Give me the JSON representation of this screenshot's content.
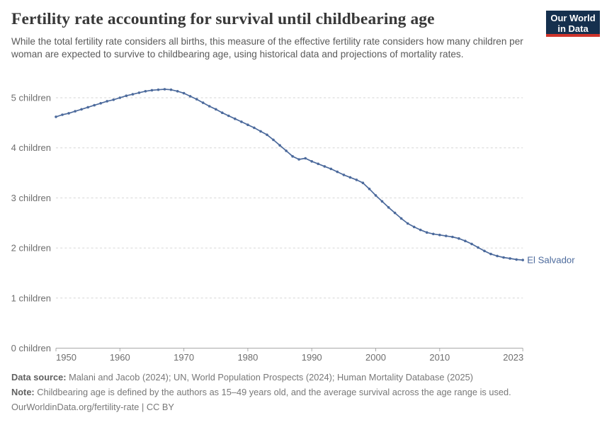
{
  "header": {
    "title": "Fertility rate accounting for survival until childbearing age",
    "subtitle": "While the total fertility rate considers all births, this measure of the effective fertility rate considers how many children per woman are expected to survive to childbearing age, using historical data and projections of mortality rates."
  },
  "logo": {
    "line1": "Our World",
    "line2": "in Data"
  },
  "chart_data": {
    "type": "line",
    "title": "Fertility rate accounting for survival until childbearing age",
    "entity": "El Salvador",
    "xlabel": "",
    "ylabel": "children",
    "xlim": [
      1950,
      2023
    ],
    "ylim": [
      0,
      5.5
    ],
    "grid": "horizontal-dashed",
    "legend_position": "end-of-line-label",
    "line_color": "#4c6a9c",
    "x_ticks": [
      1950,
      1960,
      1970,
      1980,
      1990,
      2000,
      2010,
      2023
    ],
    "y_ticks": [
      0,
      1,
      2,
      3,
      4,
      5
    ],
    "y_tick_labels": [
      "0 children",
      "1 children",
      "2 children",
      "3 children",
      "4 children",
      "5 children"
    ],
    "series": [
      {
        "name": "El Salvador",
        "years": [
          1950,
          1951,
          1952,
          1953,
          1954,
          1955,
          1956,
          1957,
          1958,
          1959,
          1960,
          1961,
          1962,
          1963,
          1964,
          1965,
          1966,
          1967,
          1968,
          1969,
          1970,
          1971,
          1972,
          1973,
          1974,
          1975,
          1976,
          1977,
          1978,
          1979,
          1980,
          1981,
          1982,
          1983,
          1984,
          1985,
          1986,
          1987,
          1988,
          1989,
          1990,
          1991,
          1992,
          1993,
          1994,
          1995,
          1996,
          1997,
          1998,
          1999,
          2000,
          2001,
          2002,
          2003,
          2004,
          2005,
          2006,
          2007,
          2008,
          2009,
          2010,
          2011,
          2012,
          2013,
          2014,
          2015,
          2016,
          2017,
          2018,
          2019,
          2020,
          2021,
          2022,
          2023
        ],
        "values": [
          4.62,
          4.66,
          4.69,
          4.73,
          4.77,
          4.81,
          4.85,
          4.89,
          4.93,
          4.96,
          5.0,
          5.04,
          5.07,
          5.1,
          5.13,
          5.15,
          5.16,
          5.17,
          5.16,
          5.13,
          5.09,
          5.03,
          4.97,
          4.9,
          4.83,
          4.77,
          4.7,
          4.64,
          4.58,
          4.52,
          4.46,
          4.4,
          4.33,
          4.26,
          4.16,
          4.05,
          3.94,
          3.83,
          3.77,
          3.79,
          3.73,
          3.68,
          3.63,
          3.58,
          3.52,
          3.46,
          3.41,
          3.36,
          3.3,
          3.18,
          3.05,
          2.93,
          2.81,
          2.7,
          2.59,
          2.49,
          2.42,
          2.36,
          2.31,
          2.28,
          2.26,
          2.24,
          2.22,
          2.19,
          2.14,
          2.08,
          2.01,
          1.94,
          1.88,
          1.84,
          1.81,
          1.79,
          1.77,
          1.76
        ]
      }
    ]
  },
  "footer": {
    "data_source_label": "Data source:",
    "data_source_text": "Malani and Jacob (2024); UN, World Population Prospects (2024); Human Mortality Database (2025)",
    "note_label": "Note:",
    "note_text": "Childbearing age is defined by the authors as 15–49 years old, and the average survival across the age range is used.",
    "url": "OurWorldinData.org/fertility-rate | CC BY"
  },
  "colors": {
    "line": "#4c6a9c",
    "entity_label": "#4c6a9c",
    "gridline": "#d6d6d6",
    "axis": "#a8a8a8",
    "tick_label": "#6e6e6e",
    "logo_navy": "#15304e",
    "logo_red": "#cf342b"
  }
}
